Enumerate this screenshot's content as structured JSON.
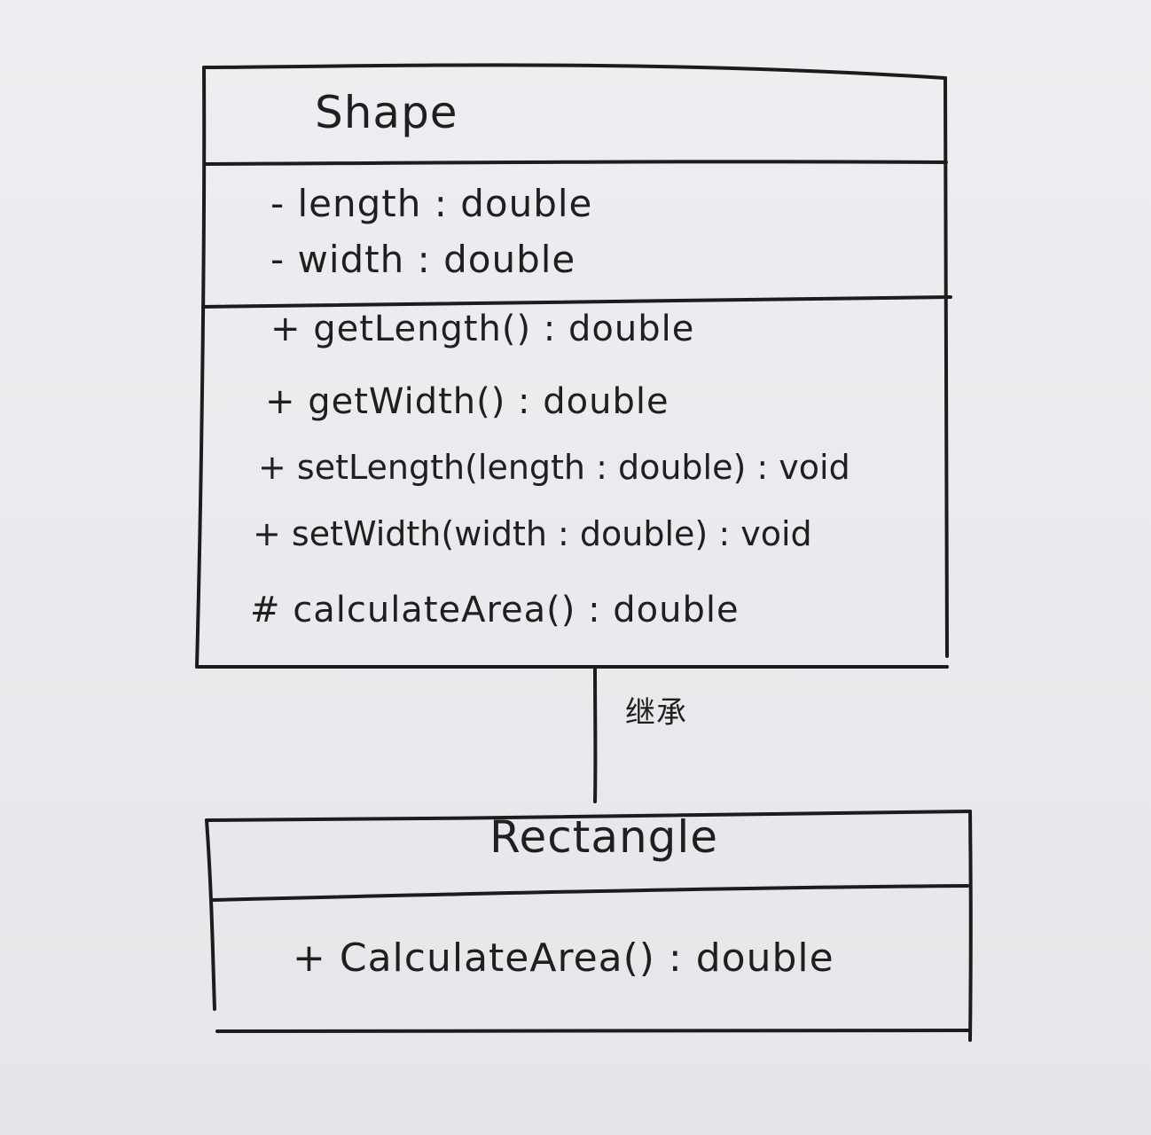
{
  "diagram": {
    "classes": [
      {
        "id": "shape",
        "name": "Shape",
        "attributes": [
          "- length : double",
          "- width : double"
        ],
        "methods": [
          "+ getLength() : double",
          "+ getWidth() : double",
          "+ setLength(length : double) : void",
          "+ setWidth(width : double) : void",
          "# calculateArea() : double"
        ]
      },
      {
        "id": "rectangle",
        "name": "Rectangle",
        "attributes": [],
        "methods": [
          "+ CalculateArea() : double"
        ]
      }
    ],
    "relationships": [
      {
        "type": "inheritance",
        "label": "继承"
      }
    ]
  }
}
